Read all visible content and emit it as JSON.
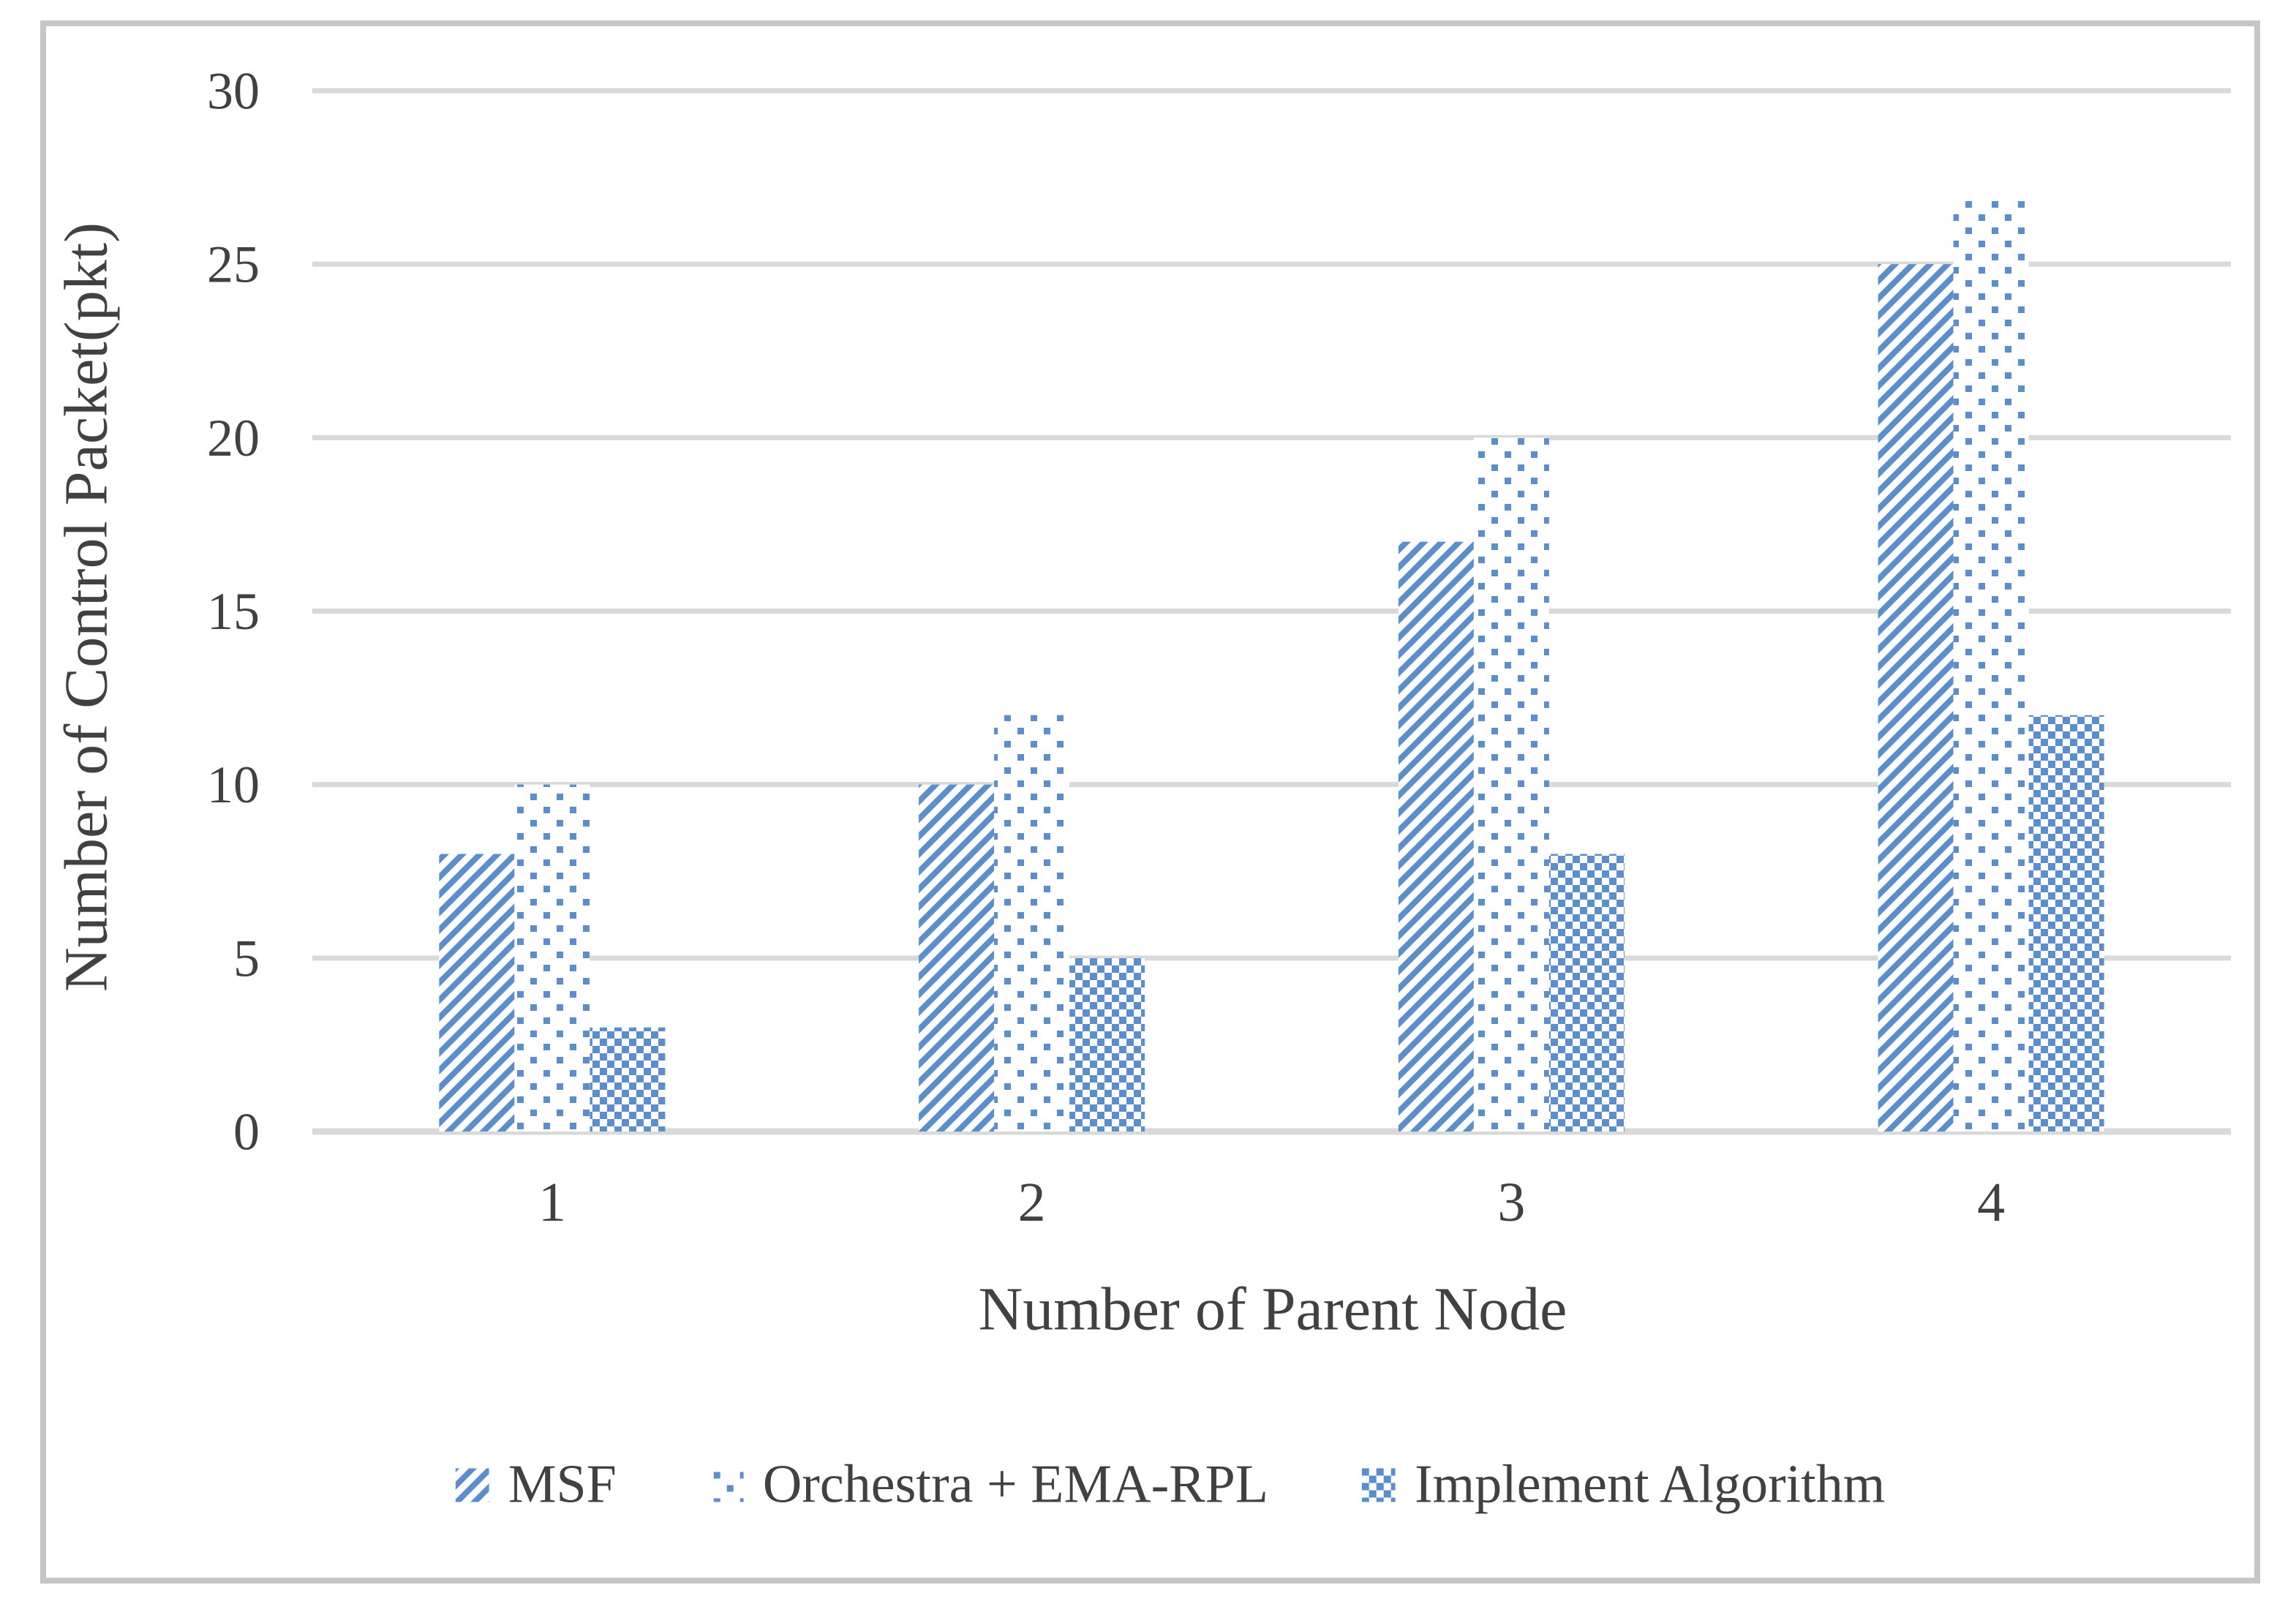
{
  "chart_data": {
    "type": "bar",
    "title": "",
    "categories": [
      "1",
      "2",
      "3",
      "4"
    ],
    "series": [
      {
        "name": "MSF",
        "pattern": "diagonal-stripes",
        "values": [
          8,
          10,
          17,
          25
        ]
      },
      {
        "name": "Orchestra + EMA-RPL",
        "pattern": "dots",
        "values": [
          10,
          12,
          20,
          27
        ]
      },
      {
        "name": "Implement Algorithm",
        "pattern": "checker",
        "values": [
          3,
          5,
          8,
          12
        ]
      }
    ],
    "xlabel": "Number of Parent Node",
    "ylabel": "Number of Control Packet(pkt)",
    "ylim": [
      0,
      30
    ],
    "yticks": [
      0,
      5,
      10,
      15,
      20,
      25,
      30
    ],
    "grid": true,
    "legend_position": "bottom",
    "colors": {
      "bar_blue": "#5b8ecb",
      "gridline": "#d9d9d9",
      "text": "#414141",
      "frame_border": "#c6c6c6",
      "background": "#ffffff"
    }
  }
}
